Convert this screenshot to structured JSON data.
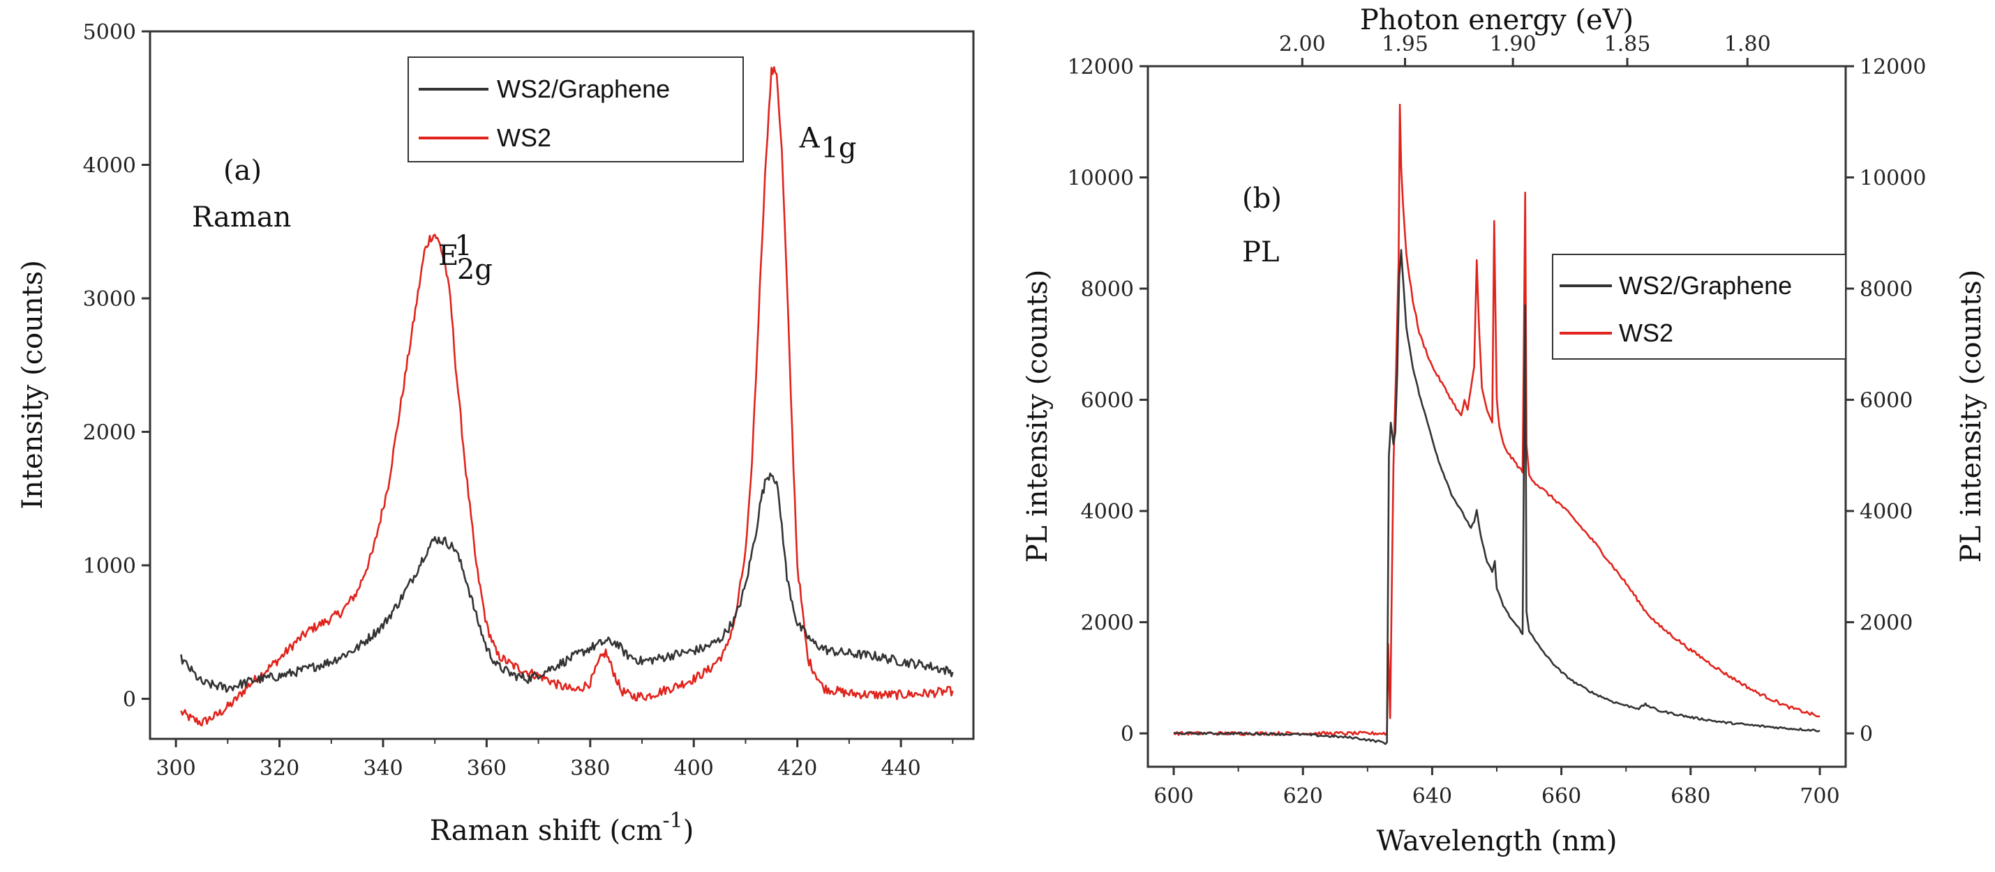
{
  "chart_data": [
    {
      "type": "line",
      "panel_label": "(a)",
      "annotation": "Raman",
      "peak_labels": [
        {
          "main": "E",
          "sub": "2g",
          "sup": "1",
          "x": 350
        },
        {
          "main": "A",
          "sub": "1g",
          "x": 415
        }
      ],
      "xlabel_main": "Raman shift (cm",
      "xlabel_sup": "-1",
      "xlabel_end": ")",
      "ylabel": "Intensity (counts)",
      "xlim": [
        295,
        454
      ],
      "ylim": [
        -300,
        5000
      ],
      "xticks": [
        "300",
        "320",
        "340",
        "360",
        "380",
        "400",
        "420",
        "440"
      ],
      "yticks": [
        "0",
        "1000",
        "2000",
        "3000",
        "4000",
        "5000"
      ],
      "legend_position": "top-right",
      "series": [
        {
          "name": "WS2/Graphene",
          "color": "#333333",
          "x": [
            301,
            305,
            310,
            315,
            320,
            325,
            330,
            335,
            340,
            343,
            346,
            348,
            350,
            352,
            354,
            356,
            358,
            360,
            362,
            365,
            368,
            371,
            374,
            377,
            380,
            383,
            385,
            387,
            390,
            393,
            396,
            399,
            402,
            405,
            408,
            410,
            412,
            413,
            414,
            415,
            416,
            417,
            418,
            420,
            423,
            426,
            430,
            435,
            440,
            445,
            450
          ],
          "y": [
            300,
            120,
            80,
            140,
            170,
            220,
            280,
            380,
            550,
            720,
            920,
            1080,
            1200,
            1180,
            1120,
            900,
            620,
            380,
            250,
            180,
            150,
            200,
            260,
            320,
            380,
            430,
            420,
            330,
            280,
            300,
            330,
            350,
            380,
            440,
            600,
            850,
            1250,
            1500,
            1650,
            1700,
            1620,
            1300,
            900,
            560,
            420,
            360,
            340,
            320,
            280,
            250,
            200
          ]
        },
        {
          "name": "WS2",
          "color": "#e0231c",
          "x": [
            301,
            303,
            305,
            308,
            311,
            314,
            317,
            320,
            323,
            326,
            329,
            332,
            335,
            338,
            341,
            343,
            345,
            347,
            348,
            349,
            350,
            351,
            352,
            353,
            354,
            356,
            358,
            360,
            362,
            365,
            368,
            371,
            374,
            377,
            380,
            382,
            383,
            384,
            386,
            388,
            391,
            394,
            397,
            400,
            403,
            406,
            408,
            410,
            411,
            412,
            413,
            414,
            415,
            416,
            417,
            418,
            419,
            420,
            422,
            425,
            430,
            435,
            440,
            445,
            450
          ],
          "y": [
            -100,
            -150,
            -180,
            -120,
            -30,
            100,
            200,
            300,
            420,
            520,
            580,
            650,
            800,
            1100,
            1600,
            2100,
            2600,
            3100,
            3350,
            3450,
            3480,
            3400,
            3250,
            3000,
            2500,
            1700,
            1000,
            550,
            330,
            250,
            200,
            160,
            100,
            60,
            120,
            300,
            350,
            250,
            60,
            20,
            20,
            60,
            100,
            150,
            220,
            350,
            600,
            1100,
            1600,
            2400,
            3300,
            4100,
            4700,
            4700,
            4100,
            3100,
            2000,
            1000,
            300,
            80,
            40,
            30,
            30,
            40,
            60
          ]
        }
      ]
    },
    {
      "type": "line",
      "panel_label": "(b)",
      "annotation": "PL",
      "xlabel": "Wavelength (nm)",
      "ylabel_left": "PL intensity (counts)",
      "ylabel_right": "PL intensity (counts)",
      "top_xlabel": "Photon energy (eV)",
      "top_xticks": [
        {
          "label": "2.00",
          "wavelength": 619.9
        },
        {
          "label": "1.95",
          "wavelength": 635.8
        },
        {
          "label": "1.90",
          "wavelength": 652.5
        },
        {
          "label": "1.85",
          "wavelength": 670.2
        },
        {
          "label": "1.80",
          "wavelength": 688.8
        }
      ],
      "xlim": [
        596,
        704
      ],
      "ylim": [
        -600,
        12000
      ],
      "xticks": [
        "600",
        "620",
        "640",
        "660",
        "680",
        "700"
      ],
      "yticks": [
        "0",
        "2000",
        "4000",
        "6000",
        "8000",
        "10000",
        "12000"
      ],
      "legend_position": "top-right",
      "series": [
        {
          "name": "WS2/Graphene",
          "color": "#333333",
          "x": [
            600,
            610,
            620,
            628,
            632,
            633,
            633.3,
            633.6,
            634,
            634.3,
            634.6,
            634.9,
            635.2,
            635.6,
            636,
            637,
            638,
            639,
            640,
            641,
            642,
            643,
            644,
            645,
            646,
            646.5,
            646.9,
            647.3,
            647.8,
            648.5,
            649.3,
            649.7,
            650,
            651,
            652,
            653,
            654,
            654.2,
            654.4,
            654.6,
            655,
            656,
            658,
            660,
            662,
            665,
            668,
            670,
            672,
            673,
            675,
            680,
            685,
            690,
            695,
            700
          ],
          "y": [
            0,
            0,
            -20,
            -80,
            -150,
            -180,
            5000,
            5600,
            5200,
            5400,
            6500,
            8200,
            8700,
            8000,
            7300,
            6600,
            6100,
            5700,
            5300,
            4900,
            4600,
            4300,
            4100,
            3900,
            3700,
            3800,
            4000,
            3700,
            3400,
            3100,
            2900,
            3100,
            2600,
            2300,
            2100,
            1950,
            1800,
            4900,
            7700,
            2200,
            1850,
            1650,
            1350,
            1100,
            920,
            720,
            570,
            500,
            450,
            520,
            410,
            290,
            200,
            140,
            90,
            50
          ]
        },
        {
          "name": "WS2",
          "color": "#e0231c",
          "x": [
            600,
            610,
            620,
            630,
            632,
            633,
            633.2,
            633.5,
            634,
            634.4,
            634.8,
            635,
            635.2,
            635.5,
            636,
            637,
            638,
            639,
            640,
            641,
            642,
            643,
            644,
            644.5,
            645,
            645.5,
            646,
            646.5,
            646.9,
            647.3,
            647.7,
            648.5,
            649.3,
            649.6,
            650,
            650.4,
            651,
            652,
            653,
            654,
            654.2,
            654.4,
            654.6,
            655,
            656,
            658,
            660,
            662,
            665,
            668,
            670,
            673,
            675,
            680,
            685,
            690,
            695,
            700
          ],
          "y": [
            0,
            0,
            0,
            0,
            0,
            0,
            1600,
            300,
            4800,
            6500,
            8500,
            11300,
            10200,
            9500,
            8600,
            7800,
            7200,
            6900,
            6600,
            6400,
            6200,
            6000,
            5800,
            5700,
            6000,
            5800,
            6200,
            6600,
            8500,
            7200,
            6200,
            5800,
            5600,
            9200,
            6000,
            5500,
            5200,
            5000,
            4850,
            4700,
            7200,
            9700,
            5200,
            4650,
            4500,
            4300,
            4100,
            3850,
            3450,
            3000,
            2700,
            2200,
            1950,
            1500,
            1100,
            750,
            480,
            300
          ]
        }
      ]
    }
  ]
}
